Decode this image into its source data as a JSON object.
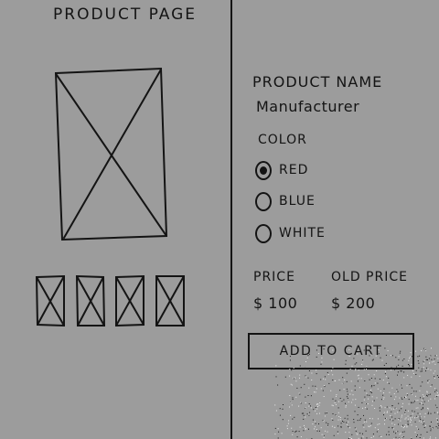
{
  "page": {
    "title": "PRODUCT PAGE"
  },
  "product": {
    "name": "PRODUCT NAME",
    "manufacturer": "Manufacturer",
    "main_image_icon": "image-placeholder-icon",
    "thumbnails": [
      {
        "icon": "image-placeholder-icon"
      },
      {
        "icon": "image-placeholder-icon"
      },
      {
        "icon": "image-placeholder-icon"
      },
      {
        "icon": "image-placeholder-icon"
      }
    ]
  },
  "color": {
    "label": "COLOR",
    "selected": "RED",
    "options": [
      "RED",
      "BLUE",
      "WHITE"
    ]
  },
  "price": {
    "label": "PRICE",
    "value": "$ 100",
    "old_label": "OLD PRICE",
    "old_value": "$ 200"
  },
  "cart": {
    "button_label": "ADD TO CART"
  }
}
